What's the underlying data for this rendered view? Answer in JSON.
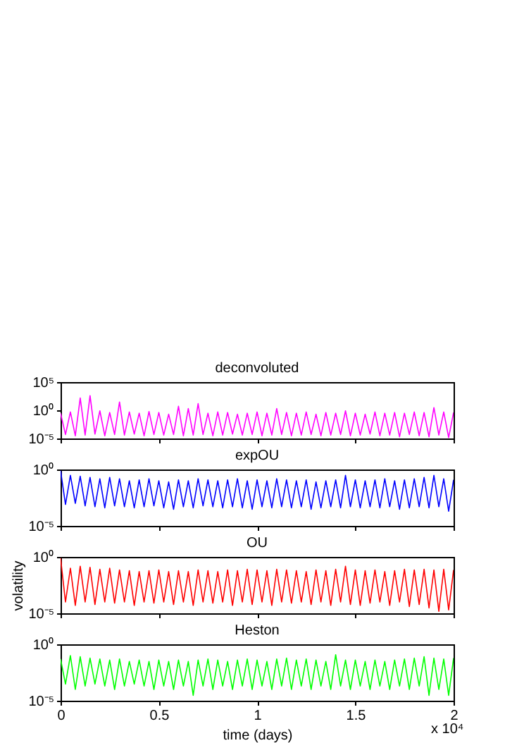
{
  "chart_data": [
    {
      "type": "line",
      "title": "deconvoluted",
      "tick_labels": "y",
      "log": "y",
      "grid": false,
      "legend": false,
      "x": [
        0,
        0.025,
        0.05,
        0.075,
        0.1,
        0.125,
        0.15,
        0.175,
        0.2,
        0.225,
        0.25,
        0.275,
        0.3,
        0.325,
        0.35,
        0.375,
        0.4,
        0.425,
        0.45,
        0.475,
        0.5,
        0.525,
        0.55,
        0.575,
        0.6,
        0.625,
        0.65,
        0.675,
        0.7,
        0.725,
        0.75,
        0.775,
        0.8,
        0.825,
        0.85,
        0.875,
        0.9,
        0.925,
        0.95,
        0.975,
        1,
        1.025,
        1.05,
        1.075,
        1.1,
        1.125,
        1.15,
        1.175,
        1.2,
        1.225,
        1.25,
        1.275,
        1.3,
        1.325,
        1.35,
        1.375,
        1.4,
        1.425,
        1.45,
        1.475,
        1.5,
        1.525,
        1.55,
        1.575,
        1.6,
        1.625,
        1.65,
        1.675,
        1.7,
        1.725,
        1.75,
        1.775,
        1.8,
        1.825,
        1.85,
        1.875,
        1.9,
        1.925,
        1.95,
        1.975,
        2
      ],
      "xlim": [
        0,
        2
      ],
      "xticks": [
        0,
        0.5,
        1,
        1.5,
        2
      ],
      "ylim": [
        1e-05,
        100000.0
      ],
      "yticks": [
        {
          "value": 1e-05,
          "label": "10⁻⁵"
        },
        {
          "value": 1,
          "label": "10⁰"
        },
        {
          "value": 100000.0,
          "label": "10⁵"
        }
      ],
      "series": [
        {
          "color": "#ff00ff",
          "values": [
            0.3,
            5e-05,
            0.5,
            3e-05,
            150,
            4e-05,
            400,
            6e-05,
            0.8,
            3e-05,
            0.4,
            5e-05,
            30,
            4e-05,
            0.5,
            6e-05,
            0.3,
            3e-05,
            0.6,
            5e-05,
            0.4,
            4e-05,
            0.2,
            5e-05,
            5,
            3e-05,
            2,
            4e-05,
            15,
            5e-05,
            0.3,
            3e-05,
            0.5,
            4e-05,
            0.4,
            6e-05,
            0.2,
            4e-05,
            0.3,
            5e-05,
            0.5,
            3e-05,
            0.3,
            4e-05,
            2,
            5e-05,
            0.4,
            3e-05,
            0.3,
            4e-05,
            0.5,
            5e-05,
            0.2,
            3e-05,
            0.4,
            4e-05,
            0.3,
            5e-05,
            0.8,
            3e-05,
            0.3,
            4e-05,
            0.2,
            6e-05,
            0.5,
            3e-05,
            0.3,
            4e-05,
            0.4,
            2e-05,
            0.3,
            5e-05,
            0.5,
            3e-05,
            0.4,
            2e-05,
            3,
            4e-05,
            0.5,
            1.5e-05,
            0.4
          ]
        }
      ]
    },
    {
      "type": "line",
      "title": "expOU",
      "tick_labels": "y",
      "log": "y",
      "grid": false,
      "legend": false,
      "x": [
        0,
        0.025,
        0.05,
        0.075,
        0.1,
        0.125,
        0.15,
        0.175,
        0.2,
        0.225,
        0.25,
        0.275,
        0.3,
        0.325,
        0.35,
        0.375,
        0.4,
        0.425,
        0.45,
        0.475,
        0.5,
        0.525,
        0.55,
        0.575,
        0.6,
        0.625,
        0.65,
        0.675,
        0.7,
        0.725,
        0.75,
        0.775,
        0.8,
        0.825,
        0.85,
        0.875,
        0.9,
        0.925,
        0.95,
        0.975,
        1,
        1.025,
        1.05,
        1.075,
        1.1,
        1.125,
        1.15,
        1.175,
        1.2,
        1.225,
        1.25,
        1.275,
        1.3,
        1.325,
        1.35,
        1.375,
        1.4,
        1.425,
        1.45,
        1.475,
        1.5,
        1.525,
        1.55,
        1.575,
        1.6,
        1.625,
        1.65,
        1.675,
        1.7,
        1.725,
        1.75,
        1.775,
        1.8,
        1.825,
        1.85,
        1.875,
        1.9,
        1.925,
        1.95,
        1.975,
        2
      ],
      "xlim": [
        0,
        2
      ],
      "xticks": [
        0,
        0.5,
        1,
        1.5,
        2
      ],
      "ylim": [
        1e-05,
        1
      ],
      "yticks": [
        {
          "value": 1e-05,
          "label": "10⁻⁵"
        },
        {
          "value": 1,
          "label": "10⁰"
        }
      ],
      "series": [
        {
          "color": "#0000ff",
          "values": [
            0.8,
            0.0008,
            0.3,
            0.001,
            0.25,
            0.0006,
            0.2,
            0.0005,
            0.15,
            0.0004,
            0.2,
            0.0006,
            0.15,
            0.0005,
            0.1,
            0.0004,
            0.12,
            0.0005,
            0.15,
            0.0006,
            0.1,
            0.0004,
            0.08,
            0.0003,
            0.12,
            0.0005,
            0.1,
            0.0004,
            0.15,
            0.0006,
            0.12,
            0.0005,
            0.1,
            0.0004,
            0.12,
            0.0005,
            0.15,
            0.0004,
            0.1,
            0.0003,
            0.12,
            0.0005,
            0.1,
            0.0004,
            0.15,
            0.0005,
            0.12,
            0.0004,
            0.1,
            0.0005,
            0.12,
            0.0003,
            0.08,
            0.0004,
            0.1,
            0.0005,
            0.12,
            0.0004,
            0.3,
            0.0005,
            0.12,
            0.0004,
            0.1,
            0.0005,
            0.12,
            0.0004,
            0.15,
            0.0005,
            0.1,
            0.0003,
            0.12,
            0.0004,
            0.15,
            0.0005,
            0.2,
            0.0004,
            0.3,
            0.0005,
            0.15,
            0.0002,
            0.12
          ]
        }
      ]
    },
    {
      "type": "line",
      "title": "OU",
      "ylabel": "volatility",
      "tick_labels": "y",
      "log": "y",
      "grid": false,
      "legend": false,
      "x": [
        0,
        0.025,
        0.05,
        0.075,
        0.1,
        0.125,
        0.15,
        0.175,
        0.2,
        0.225,
        0.25,
        0.275,
        0.3,
        0.325,
        0.35,
        0.375,
        0.4,
        0.425,
        0.45,
        0.475,
        0.5,
        0.525,
        0.55,
        0.575,
        0.6,
        0.625,
        0.65,
        0.675,
        0.7,
        0.725,
        0.75,
        0.775,
        0.8,
        0.825,
        0.85,
        0.875,
        0.9,
        0.925,
        0.95,
        0.975,
        1,
        1.025,
        1.05,
        1.075,
        1.1,
        1.125,
        1.15,
        1.175,
        1.2,
        1.225,
        1.25,
        1.275,
        1.3,
        1.325,
        1.35,
        1.375,
        1.4,
        1.425,
        1.45,
        1.475,
        1.5,
        1.525,
        1.55,
        1.575,
        1.6,
        1.625,
        1.65,
        1.675,
        1.7,
        1.725,
        1.75,
        1.775,
        1.8,
        1.825,
        1.85,
        1.875,
        1.9,
        1.925,
        1.95,
        1.975,
        2
      ],
      "xlim": [
        0,
        2
      ],
      "xticks": [
        0,
        0.5,
        1,
        1.5,
        2
      ],
      "ylim": [
        1e-05,
        1
      ],
      "yticks": [
        {
          "value": 1e-05,
          "label": "10⁻⁵"
        },
        {
          "value": 1,
          "label": "10⁰"
        }
      ],
      "series": [
        {
          "color": "#ff0000",
          "values": [
            0.8,
            0.0001,
            0.1,
            5e-05,
            0.15,
            0.0001,
            0.12,
            6e-05,
            0.08,
            0.0001,
            0.1,
            8e-05,
            0.07,
            0.0001,
            0.06,
            5e-05,
            0.05,
            0.0001,
            0.06,
            8e-05,
            0.07,
            0.0001,
            0.05,
            6e-05,
            0.06,
            0.0001,
            0.05,
            5e-05,
            0.07,
            0.0001,
            0.06,
            8e-05,
            0.05,
            0.0001,
            0.07,
            5e-05,
            0.06,
            0.0001,
            0.08,
            6e-05,
            0.07,
            0.0001,
            0.06,
            5e-05,
            0.08,
            0.0001,
            0.07,
            8e-05,
            0.06,
            0.0001,
            0.05,
            6e-05,
            0.07,
            0.0001,
            0.06,
            5e-05,
            0.08,
            0.0001,
            0.15,
            6e-05,
            0.07,
            5e-05,
            0.06,
            8e-05,
            0.07,
            0.0001,
            0.05,
            5e-05,
            0.06,
            0.0001,
            0.08,
            4e-05,
            0.07,
            6e-05,
            0.08,
            3e-05,
            0.07,
            1.5e-05,
            0.08,
            2e-05,
            0.07
          ]
        }
      ]
    },
    {
      "type": "line",
      "title": "Heston",
      "xlabel": "time (days)",
      "log": "y",
      "grid": false,
      "legend": false,
      "x": [
        0,
        0.025,
        0.05,
        0.075,
        0.1,
        0.125,
        0.15,
        0.175,
        0.2,
        0.225,
        0.25,
        0.275,
        0.3,
        0.325,
        0.35,
        0.375,
        0.4,
        0.425,
        0.45,
        0.475,
        0.5,
        0.525,
        0.55,
        0.575,
        0.6,
        0.625,
        0.65,
        0.675,
        0.7,
        0.725,
        0.75,
        0.775,
        0.8,
        0.825,
        0.85,
        0.875,
        0.9,
        0.925,
        0.95,
        0.975,
        1,
        1.025,
        1.05,
        1.075,
        1.1,
        1.125,
        1.15,
        1.175,
        1.2,
        1.225,
        1.25,
        1.275,
        1.3,
        1.325,
        1.35,
        1.375,
        1.4,
        1.425,
        1.45,
        1.475,
        1.5,
        1.525,
        1.55,
        1.575,
        1.6,
        1.625,
        1.65,
        1.675,
        1.7,
        1.725,
        1.75,
        1.775,
        1.8,
        1.825,
        1.85,
        1.875,
        1.9,
        1.925,
        1.95,
        1.975,
        2
      ],
      "xlim": [
        0,
        2
      ],
      "xticks": [
        0,
        0.5,
        1,
        1.5,
        2
      ],
      "ylim": [
        1e-05,
        1
      ],
      "yticks": [
        {
          "value": 1e-05,
          "label": "10⁻⁵"
        },
        {
          "value": 1,
          "label": "10⁰"
        }
      ],
      "annotations": [
        "x 10⁴"
      ],
      "series": [
        {
          "color": "#00ff00",
          "values": [
            0.05,
            0.0003,
            0.1,
            0.0001,
            0.08,
            0.0002,
            0.06,
            0.0003,
            0.05,
            0.0002,
            0.04,
            0.0001,
            0.05,
            0.0002,
            0.03,
            0.0003,
            0.04,
            0.0002,
            0.03,
            0.0001,
            0.04,
            0.0002,
            0.03,
            0.0001,
            0.04,
            0.0002,
            0.03,
            3e-05,
            0.04,
            0.0002,
            0.05,
            0.0001,
            0.04,
            0.0002,
            0.03,
            0.0001,
            0.04,
            0.0002,
            0.05,
            0.0001,
            0.04,
            0.0002,
            0.03,
            0.0001,
            0.05,
            0.0002,
            0.06,
            0.0001,
            0.04,
            0.0002,
            0.05,
            0.0001,
            0.04,
            0.0002,
            0.03,
            0.0001,
            0.12,
            0.0002,
            0.04,
            0.0001,
            0.04,
            0.0002,
            0.03,
            0.0001,
            0.04,
            0.0002,
            0.03,
            0.0001,
            0.04,
            0.0002,
            0.05,
            0.0001,
            0.06,
            0.0002,
            0.08,
            3e-05,
            0.06,
            0.0001,
            0.05,
            3e-05,
            0.06
          ]
        }
      ]
    }
  ]
}
